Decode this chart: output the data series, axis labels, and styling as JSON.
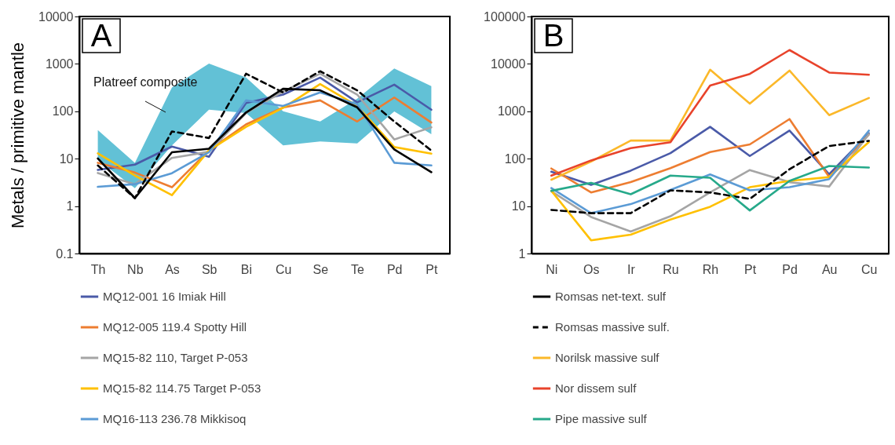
{
  "chart_data": [
    {
      "type": "line",
      "title": "A",
      "ylabel": "Metals / primitive mantle",
      "categories": [
        "Th",
        "Nb",
        "As",
        "Sb",
        "Bi",
        "Cu",
        "Se",
        "Te",
        "Pd",
        "Pt"
      ],
      "log": true,
      "grid": false,
      "legend": "bottom",
      "marker": "none",
      "ylim": [
        0.1,
        10000
      ],
      "yticks": [
        0.1,
        1,
        10,
        100,
        1000,
        10000
      ],
      "annotations": [
        "Platreef composite"
      ],
      "series": [
        {
          "type": "area",
          "color": "#62c1d6",
          "values": [
            null,
            null,
            null,
            null,
            null,
            null,
            null,
            null,
            null,
            null
          ],
          "lower": [
            9.5,
            2.4,
            19,
            108,
            92,
            19,
            23,
            21,
            99,
            33
          ],
          "upper": [
            40,
            8.2,
            316,
            1020,
            515,
            100,
            61,
            184,
            800,
            340
          ]
        },
        {
          "name": "MQ12-001 16 Imiak Hill",
          "color": "#4a5aa8",
          "values": [
            5.8,
            7.5,
            18,
            11,
            150,
            225,
            515,
            155,
            365,
            108
          ]
        },
        {
          "name": "MQ12-005 119.4 Spotty Hill",
          "color": "#ed7d31",
          "values": [
            8.2,
            5.1,
            2.5,
            15,
            53,
            120,
            170,
            61,
            195,
            58
          ]
        },
        {
          "name": "MQ15-82 110, Target P-053",
          "color": "#a5a5a5",
          "values": [
            5,
            2.9,
            10.4,
            14,
            92,
            260,
            620,
            225,
            25.5,
            46
          ]
        },
        {
          "name": "MQ15-82 114.75 Target P-053",
          "color": "#ffc000",
          "values": [
            13,
            4.4,
            1.7,
            15,
            47,
            118,
            375,
            130,
            17.6,
            12.8
          ]
        },
        {
          "name": "MQ16-113 236.78 Mikkisoq",
          "color": "#5b9bd5",
          "values": [
            2.55,
            2.9,
            4.95,
            13.7,
            170,
            130,
            250,
            140,
            8.2,
            7.2
          ]
        },
        {
          "color": "#000000",
          "values": [
            10.1,
            1.47,
            13.7,
            16.2,
            94.5,
            298,
            277,
            121,
            15.7,
            5.2
          ]
        },
        {
          "color": "#000000",
          "line_style": "dashed",
          "values": [
            7.2,
            1.47,
            37.6,
            27.3,
            620,
            250,
            700,
            277,
            61,
            14.9
          ]
        }
      ]
    },
    {
      "type": "line",
      "title": "B",
      "categories": [
        "Ni",
        "Os",
        "Ir",
        "Ru",
        "Rh",
        "Pt",
        "Pd",
        "Au",
        "Cu"
      ],
      "log": true,
      "grid": false,
      "legend": "bottom",
      "marker": "none",
      "ylim": [
        1,
        100000
      ],
      "yticks": [
        1,
        10,
        100,
        1000,
        10000,
        100000
      ],
      "series": [
        {
          "color": "#4a5aa8",
          "values": [
            53,
            28,
            56,
            131,
            470,
            114,
            392,
            47,
            344
          ]
        },
        {
          "color": "#ed7d31",
          "values": [
            62,
            19.4,
            32,
            63,
            138,
            200,
            685,
            41,
            325
          ]
        },
        {
          "color": "#a5a5a5",
          "values": [
            20.6,
            5.9,
            2.9,
            6.1,
            19.4,
            57.6,
            32,
            25.9,
            330
          ]
        },
        {
          "color": "#ffc000",
          "values": [
            21,
            1.9,
            2.5,
            5.2,
            9.7,
            25,
            34,
            41,
            224
          ]
        },
        {
          "color": "#5b9bd5",
          "values": [
            24,
            7.1,
            11,
            22,
            46.5,
            21.5,
            25,
            37,
            390
          ]
        },
        {
          "name": "Romsas net-text. sulf",
          "color": "#000000",
          "values": [
            null,
            null,
            null,
            null,
            null,
            null,
            null,
            null,
            null
          ]
        },
        {
          "name": "Romsas massive sulf.",
          "color": "#000000",
          "line_style": "dashed",
          "values": [
            8.3,
            7.1,
            7.1,
            21.5,
            19.4,
            14.2,
            60,
            185,
            238
          ]
        },
        {
          "name": "Norilsk massive sulf",
          "color": "#fbb829",
          "values": [
            36,
            87,
            241,
            241,
            7540,
            1450,
            7220,
            830,
            1910
          ]
        },
        {
          "name": "Nor dissem sulf",
          "color": "#e8432b",
          "values": [
            44,
            92,
            167,
            223,
            3500,
            6140,
            19600,
            6560,
            5900
          ]
        },
        {
          "name": "Pipe massive sulf",
          "color": "#26a98a",
          "values": [
            21,
            31,
            17.8,
            44,
            39.5,
            8.1,
            34,
            70,
            65
          ]
        }
      ]
    }
  ]
}
